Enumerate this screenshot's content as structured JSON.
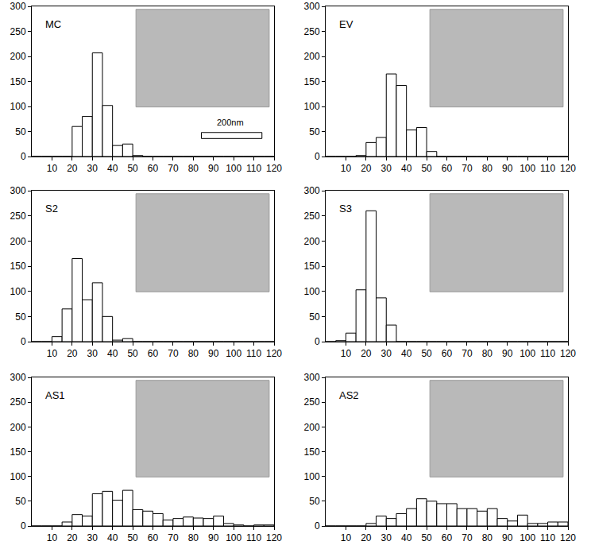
{
  "chart_data": [
    {
      "type": "histogram",
      "title": "MC",
      "bins": [
        0,
        5,
        10,
        15,
        20,
        25,
        30,
        35,
        40,
        45,
        50,
        55,
        60,
        65,
        70,
        75,
        80,
        85,
        90,
        95,
        100,
        105,
        110,
        115,
        120
      ],
      "values": [
        0,
        0,
        0,
        0,
        60,
        80,
        207,
        102,
        22,
        25,
        2,
        0,
        0,
        0,
        0,
        0,
        0,
        0,
        0,
        0,
        0,
        0,
        0,
        0
      ],
      "color": "#ffffff",
      "annotations": [
        "200nm"
      ],
      "xlim": [
        0,
        120
      ],
      "xticks": [
        10,
        20,
        30,
        40,
        50,
        60,
        70,
        80,
        90,
        100,
        110,
        120
      ],
      "ylim": [
        0,
        300
      ],
      "yticks": [
        0,
        50,
        100,
        150,
        200,
        250,
        300
      ]
    },
    {
      "type": "histogram",
      "title": "EV",
      "bins": [
        0,
        5,
        10,
        15,
        20,
        25,
        30,
        35,
        40,
        45,
        50,
        55,
        60,
        65,
        70,
        75,
        80,
        85,
        90,
        95,
        100,
        105,
        110,
        115,
        120
      ],
      "values": [
        0,
        0,
        0,
        2,
        28,
        38,
        165,
        142,
        53,
        58,
        10,
        0,
        0,
        0,
        0,
        0,
        0,
        0,
        0,
        0,
        0,
        0,
        0,
        0
      ],
      "color": "#ffffff",
      "xlim": [
        0,
        120
      ],
      "xticks": [
        10,
        20,
        30,
        40,
        50,
        60,
        70,
        80,
        90,
        100,
        110,
        120
      ],
      "ylim": [
        0,
        300
      ],
      "yticks": [
        0,
        50,
        100,
        150,
        200,
        250,
        300
      ]
    },
    {
      "type": "histogram",
      "title": "S2",
      "bins": [
        0,
        5,
        10,
        15,
        20,
        25,
        30,
        35,
        40,
        45,
        50,
        55,
        60,
        65,
        70,
        75,
        80,
        85,
        90,
        95,
        100,
        105,
        110,
        115,
        120
      ],
      "values": [
        0,
        0,
        10,
        65,
        165,
        83,
        117,
        50,
        3,
        6,
        0,
        0,
        0,
        0,
        0,
        0,
        0,
        0,
        0,
        0,
        0,
        0,
        0,
        0
      ],
      "color": "#ffffff",
      "xlim": [
        0,
        120
      ],
      "xticks": [
        10,
        20,
        30,
        40,
        50,
        60,
        70,
        80,
        90,
        100,
        110,
        120
      ],
      "ylim": [
        0,
        300
      ],
      "yticks": [
        0,
        50,
        100,
        150,
        200,
        250,
        300
      ]
    },
    {
      "type": "histogram",
      "title": "S3",
      "bins": [
        0,
        5,
        10,
        15,
        20,
        25,
        30,
        35,
        40,
        45,
        50,
        55,
        60,
        65,
        70,
        75,
        80,
        85,
        90,
        95,
        100,
        105,
        110,
        115,
        120
      ],
      "values": [
        0,
        2,
        17,
        103,
        260,
        87,
        33,
        0,
        0,
        0,
        0,
        0,
        0,
        0,
        0,
        0,
        0,
        0,
        0,
        0,
        0,
        0,
        0,
        0
      ],
      "color": "#ffffff",
      "xlim": [
        0,
        120
      ],
      "xticks": [
        10,
        20,
        30,
        40,
        50,
        60,
        70,
        80,
        90,
        100,
        110,
        120
      ],
      "ylim": [
        0,
        300
      ],
      "yticks": [
        0,
        50,
        100,
        150,
        200,
        250,
        300
      ]
    },
    {
      "type": "histogram",
      "title": "AS1",
      "bins": [
        0,
        5,
        10,
        15,
        20,
        25,
        30,
        35,
        40,
        45,
        50,
        55,
        60,
        65,
        70,
        75,
        80,
        85,
        90,
        95,
        100,
        105,
        110,
        115,
        120
      ],
      "values": [
        0,
        0,
        0,
        8,
        23,
        20,
        65,
        70,
        52,
        72,
        33,
        30,
        25,
        12,
        15,
        18,
        16,
        15,
        20,
        5,
        2,
        0,
        2,
        2
      ],
      "color": "#ffffff",
      "xlim": [
        0,
        120
      ],
      "xticks": [
        10,
        20,
        30,
        40,
        50,
        60,
        70,
        80,
        90,
        100,
        110,
        120
      ],
      "ylim": [
        0,
        300
      ],
      "yticks": [
        0,
        50,
        100,
        150,
        200,
        250,
        300
      ]
    },
    {
      "type": "histogram",
      "title": "AS2",
      "bins": [
        0,
        5,
        10,
        15,
        20,
        25,
        30,
        35,
        40,
        45,
        50,
        55,
        60,
        65,
        70,
        75,
        80,
        85,
        90,
        95,
        100,
        105,
        110,
        115,
        120
      ],
      "values": [
        0,
        0,
        0,
        0,
        5,
        20,
        15,
        25,
        35,
        55,
        50,
        45,
        45,
        35,
        35,
        30,
        35,
        15,
        10,
        22,
        5,
        5,
        8,
        8
      ],
      "color": "#ffffff",
      "xlim": [
        0,
        120
      ],
      "xticks": [
        10,
        20,
        30,
        40,
        50,
        60,
        70,
        80,
        90,
        100,
        110,
        120
      ],
      "ylim": [
        0,
        300
      ],
      "yticks": [
        0,
        50,
        100,
        150,
        200,
        250,
        300
      ]
    }
  ]
}
